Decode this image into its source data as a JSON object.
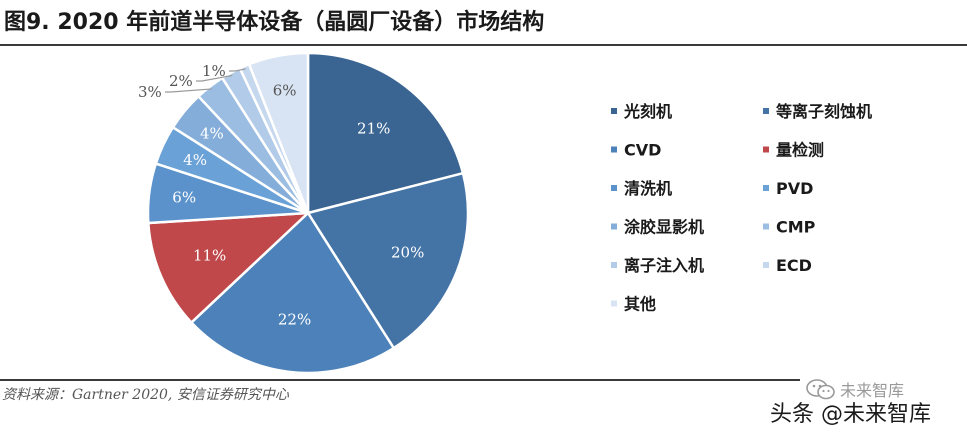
{
  "header": {
    "title": "图9. 2020 年前道半导体设备（晶圆厂设备）市场结构"
  },
  "chart_data": {
    "type": "pie",
    "title": "图9. 2020 年前道半导体设备（晶圆厂设备）市场结构",
    "slices": [
      {
        "label": "光刻机",
        "value": 21,
        "display": "21%",
        "color": "#3a6491"
      },
      {
        "label": "等离子刻蚀机",
        "value": 20,
        "display": "20%",
        "color": "#4473a5"
      },
      {
        "label": "CVD",
        "value": 22,
        "display": "22%",
        "color": "#4c81b9"
      },
      {
        "label": "量检测",
        "value": 11,
        "display": "11%",
        "color": "#c0484a"
      },
      {
        "label": "清洗机",
        "value": 6,
        "display": "6%",
        "color": "#5b92cb"
      },
      {
        "label": "PVD",
        "value": 4,
        "display": "4%",
        "color": "#6aa1d7"
      },
      {
        "label": "涂胶显影机",
        "value": 4,
        "display": "4%",
        "color": "#84aed9"
      },
      {
        "label": "CMP",
        "value": 3,
        "display": "3%",
        "color": "#9bbde2"
      },
      {
        "label": "离子注入机",
        "value": 2,
        "display": "2%",
        "color": "#b1cbe8"
      },
      {
        "label": "ECD",
        "value": 1,
        "display": "1%",
        "color": "#c6d8ee"
      },
      {
        "label": "其他",
        "value": 6,
        "display": "6%",
        "color": "#d8e4f3"
      }
    ],
    "legend_position": "right",
    "legend_columns": 2
  },
  "footer": {
    "source": "资料来源：Gartner 2020, 安信证券研究中心"
  },
  "watermark": {
    "top": "未来智库",
    "bottom": "头条 @未来智库",
    "icon": "wechat-icon"
  }
}
